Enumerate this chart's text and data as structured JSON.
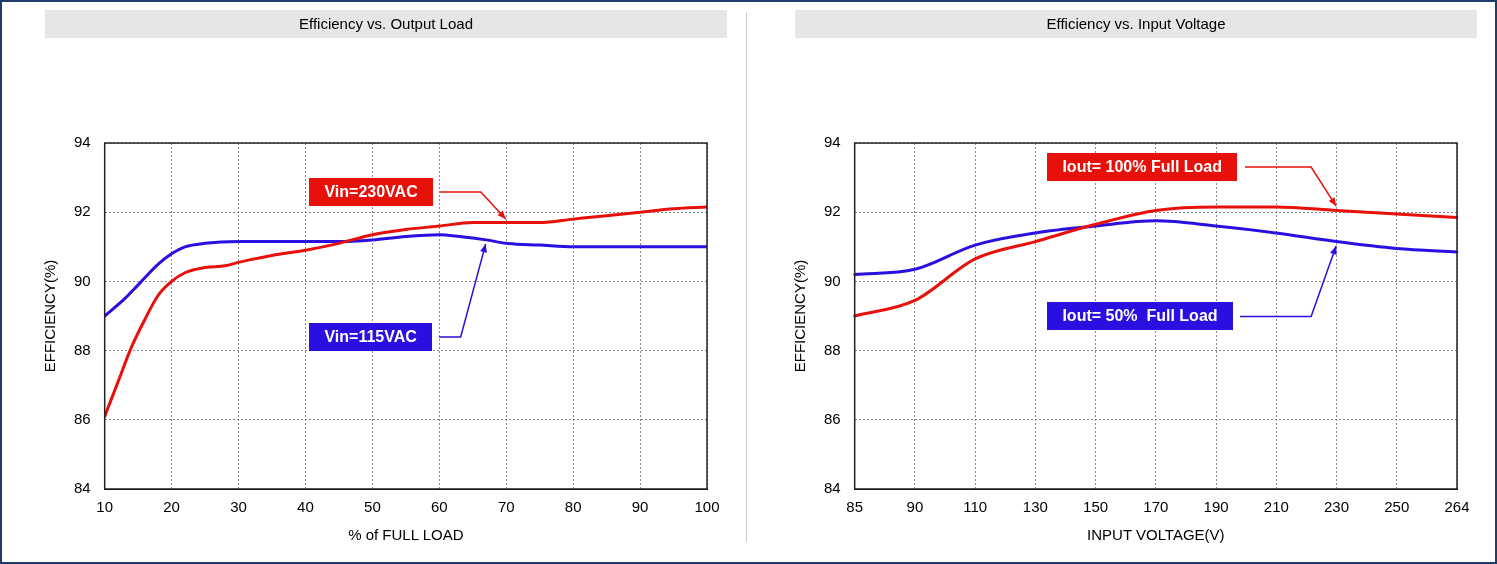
{
  "chart_data": [
    {
      "type": "line",
      "title": "Efficiency vs. Output Load",
      "xlabel": "% of FULL LOAD",
      "ylabel": "EFFICIENCY(%)",
      "xlim": [
        10,
        100
      ],
      "xticks": [
        10,
        20,
        30,
        40,
        50,
        60,
        70,
        80,
        90,
        100
      ],
      "ylim": [
        84,
        94
      ],
      "yticks": [
        84,
        86,
        88,
        90,
        92,
        94
      ],
      "grid": true,
      "marker": "none",
      "line_style": "solid",
      "series": [
        {
          "name": "Vin=230VAC",
          "color": "#e8100a",
          "x": [
            10,
            12,
            14,
            16,
            18,
            20,
            22,
            25,
            28,
            30,
            35,
            40,
            45,
            50,
            55,
            60,
            65,
            70,
            75,
            80,
            85,
            90,
            95,
            100
          ],
          "values": [
            86.1,
            87.1,
            88.1,
            88.9,
            89.6,
            90.0,
            90.25,
            90.4,
            90.45,
            90.55,
            90.75,
            90.9,
            91.1,
            91.35,
            91.5,
            91.6,
            91.7,
            91.7,
            91.7,
            91.8,
            91.9,
            92.0,
            92.1,
            92.15
          ]
        },
        {
          "name": "Vin=115VAC",
          "color": "#2a10e0",
          "x": [
            10,
            13,
            15,
            18,
            20,
            22,
            25,
            30,
            35,
            40,
            45,
            50,
            55,
            60,
            63,
            67,
            70,
            75,
            80,
            90,
            100
          ],
          "values": [
            89.0,
            89.5,
            89.9,
            90.5,
            90.8,
            91.0,
            91.1,
            91.15,
            91.15,
            91.15,
            91.15,
            91.2,
            91.3,
            91.35,
            91.3,
            91.2,
            91.1,
            91.05,
            91.0,
            91.0,
            91.0
          ]
        }
      ]
    },
    {
      "type": "line",
      "title": "Efficiency vs. Input Voltage",
      "xlabel": "INPUT VOLTAGE(V)",
      "ylabel": "EFFICIENCY(%)",
      "categories": [
        "85",
        "90",
        "110",
        "130",
        "150",
        "170",
        "190",
        "210",
        "230",
        "250",
        "264"
      ],
      "ylim": [
        84,
        94
      ],
      "yticks": [
        84,
        86,
        88,
        90,
        92,
        94
      ],
      "grid": true,
      "marker": "none",
      "line_style": "solid",
      "series": [
        {
          "name": "Iout= 100% Full Load",
          "color": "#e8100a",
          "values": [
            89.0,
            89.45,
            90.65,
            91.15,
            91.65,
            92.05,
            92.15,
            92.15,
            92.05,
            91.95,
            91.85
          ]
        },
        {
          "name": "Iout= 50%  Full Load",
          "color": "#2a10e0",
          "values": [
            90.2,
            90.35,
            91.05,
            91.4,
            91.6,
            91.75,
            91.6,
            91.4,
            91.15,
            90.95,
            90.85
          ]
        }
      ]
    }
  ]
}
